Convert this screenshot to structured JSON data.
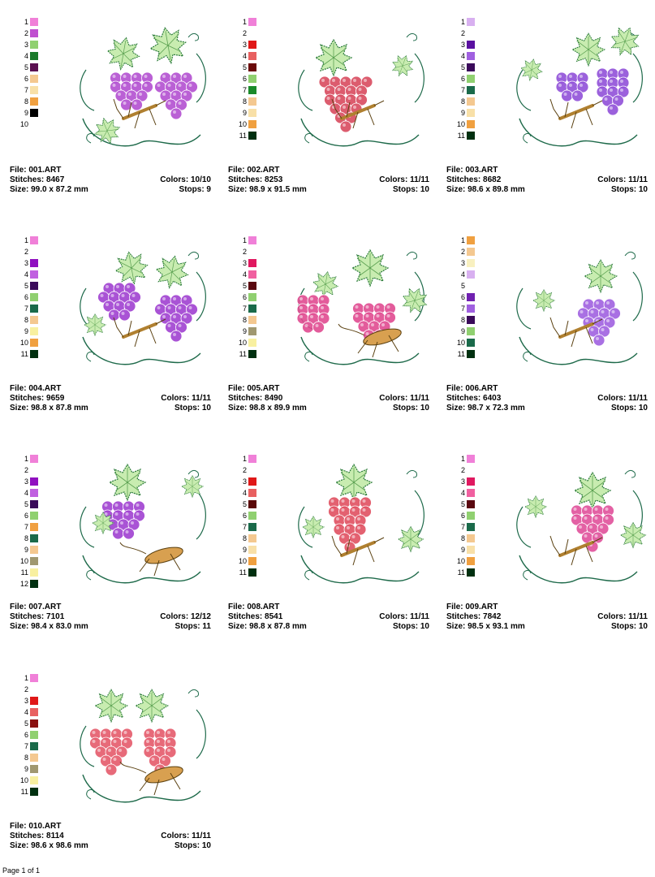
{
  "footer": "Page 1 of 1",
  "designs": [
    {
      "file": "File: 001.ART",
      "stitches": "Stitches: 8467",
      "colors": "Colors: 10/10",
      "size": "Size: 99.0 x 87.2 mm",
      "stops": "Stops: 9",
      "fruit": "#b24fd0",
      "motif": "grapes-mantis-icon",
      "swatches": [
        {
          "n": "1",
          "c": "#f080d8"
        },
        {
          "n": "2",
          "c": "#c050d0"
        },
        {
          "n": "3",
          "c": "#90d070"
        },
        {
          "n": "4",
          "c": "#1a7a2a"
        },
        {
          "n": "5",
          "c": "#5a1050"
        },
        {
          "n": "6",
          "c": "#f4c890"
        },
        {
          "n": "7",
          "c": "#f8e0a8"
        },
        {
          "n": "8",
          "c": "#f0a040"
        },
        {
          "n": "9",
          "c": "#000000"
        },
        {
          "n": "10",
          "c": null
        }
      ]
    },
    {
      "file": "File: 002.ART",
      "stitches": "Stitches: 8253",
      "colors": "Colors: 11/11",
      "size": "Size: 98.9 x 91.5 mm",
      "stops": "Stops: 10",
      "fruit": "#d84a5e",
      "motif": "grapes-mantis-icon",
      "swatches": [
        {
          "n": "1",
          "c": "#f080d8"
        },
        {
          "n": "2",
          "c": null
        },
        {
          "n": "3",
          "c": "#e01818"
        },
        {
          "n": "4",
          "c": "#e86060"
        },
        {
          "n": "5",
          "c": "#6a0808"
        },
        {
          "n": "6",
          "c": "#90d070"
        },
        {
          "n": "7",
          "c": "#1a8a2a"
        },
        {
          "n": "8",
          "c": "#f4c890"
        },
        {
          "n": "9",
          "c": "#f8e0a8"
        },
        {
          "n": "10",
          "c": "#f0a040"
        },
        {
          "n": "11",
          "c": "#003010"
        }
      ]
    },
    {
      "file": "File: 003.ART",
      "stitches": "Stitches: 8682",
      "colors": "Colors: 11/11",
      "size": "Size: 98.6 x 89.8 mm",
      "stops": "Stops: 10",
      "fruit": "#9050d8",
      "motif": "grapes-mantis-icon",
      "swatches": [
        {
          "n": "1",
          "c": "#d8b0f0"
        },
        {
          "n": "2",
          "c": null
        },
        {
          "n": "3",
          "c": "#5a10a0"
        },
        {
          "n": "4",
          "c": "#a060e0"
        },
        {
          "n": "5",
          "c": "#3a0a5a"
        },
        {
          "n": "6",
          "c": "#90d070"
        },
        {
          "n": "7",
          "c": "#1a6a4a"
        },
        {
          "n": "8",
          "c": "#f4c890"
        },
        {
          "n": "9",
          "c": "#f8e0a8"
        },
        {
          "n": "10",
          "c": "#f0a040"
        },
        {
          "n": "11",
          "c": "#003010"
        }
      ]
    },
    {
      "file": "File: 004.ART",
      "stitches": "Stitches: 9659",
      "colors": "Colors: 11/11",
      "size": "Size: 98.8 x 87.8 mm",
      "stops": "Stops: 10",
      "fruit": "#a040d0",
      "motif": "grapes-mantis-icon",
      "swatches": [
        {
          "n": "1",
          "c": "#f080d8"
        },
        {
          "n": "2",
          "c": null
        },
        {
          "n": "3",
          "c": "#9010c0"
        },
        {
          "n": "4",
          "c": "#c060e0"
        },
        {
          "n": "5",
          "c": "#3a0a5a"
        },
        {
          "n": "6",
          "c": "#90d070"
        },
        {
          "n": "7",
          "c": "#1a6a4a"
        },
        {
          "n": "8",
          "c": "#f4c890"
        },
        {
          "n": "9",
          "c": "#f8f0a0"
        },
        {
          "n": "10",
          "c": "#f0a040"
        },
        {
          "n": "11",
          "c": "#003010"
        }
      ]
    },
    {
      "file": "File: 005.ART",
      "stitches": "Stitches: 8490",
      "colors": "Colors: 11/11",
      "size": "Size: 98.8 x 89.9 mm",
      "stops": "Stops: 10",
      "fruit": "#e04a90",
      "motif": "grapes-cricket-icon",
      "swatches": [
        {
          "n": "1",
          "c": "#f080d8"
        },
        {
          "n": "2",
          "c": null
        },
        {
          "n": "3",
          "c": "#e01860"
        },
        {
          "n": "4",
          "c": "#f060a0"
        },
        {
          "n": "5",
          "c": "#5a0810"
        },
        {
          "n": "6",
          "c": "#90d070"
        },
        {
          "n": "7",
          "c": "#1a6a4a"
        },
        {
          "n": "8",
          "c": "#f4c890"
        },
        {
          "n": "9",
          "c": "#a09870"
        },
        {
          "n": "10",
          "c": "#f8f0a0"
        },
        {
          "n": "11",
          "c": "#003010"
        }
      ]
    },
    {
      "file": "File: 006.ART",
      "stitches": "Stitches: 6403",
      "colors": "Colors: 11/11",
      "size": "Size: 98.7 x 72.3 mm",
      "stops": "Stops: 10",
      "fruit": "#a060e0",
      "motif": "grapes-mantis-icon",
      "swatches": [
        {
          "n": "1",
          "c": "#f0a040"
        },
        {
          "n": "2",
          "c": "#f4c890"
        },
        {
          "n": "3",
          "c": "#f8f0c0"
        },
        {
          "n": "4",
          "c": "#d8b0f0"
        },
        {
          "n": "5",
          "c": null
        },
        {
          "n": "6",
          "c": "#7020b0"
        },
        {
          "n": "7",
          "c": "#a060e0"
        },
        {
          "n": "8",
          "c": "#3a0a5a"
        },
        {
          "n": "9",
          "c": "#90d070"
        },
        {
          "n": "10",
          "c": "#1a6a4a"
        },
        {
          "n": "11",
          "c": "#003010"
        }
      ]
    },
    {
      "file": "File: 007.ART",
      "stitches": "Stitches: 7101",
      "colors": "Colors: 12/12",
      "size": "Size: 98.4 x 83.0 mm",
      "stops": "Stops: 11",
      "fruit": "#a040d0",
      "motif": "grapes-cricket-icon",
      "swatches": [
        {
          "n": "1",
          "c": "#f080d8"
        },
        {
          "n": "2",
          "c": null
        },
        {
          "n": "3",
          "c": "#9010c0"
        },
        {
          "n": "4",
          "c": "#c060e0"
        },
        {
          "n": "5",
          "c": "#3a0a5a"
        },
        {
          "n": "6",
          "c": "#90d070"
        },
        {
          "n": "7",
          "c": "#f0a040"
        },
        {
          "n": "8",
          "c": "#1a6a4a"
        },
        {
          "n": "9",
          "c": "#f4c890"
        },
        {
          "n": "10",
          "c": "#a09870"
        },
        {
          "n": "11",
          "c": "#f8f0a0"
        },
        {
          "n": "12",
          "c": "#003010"
        }
      ]
    },
    {
      "file": "File: 008.ART",
      "stitches": "Stitches: 8541",
      "colors": "Colors: 11/11",
      "size": "Size: 98.8 x 87.8 mm",
      "stops": "Stops: 10",
      "fruit": "#e05060",
      "motif": "grapes-mantis-icon",
      "swatches": [
        {
          "n": "1",
          "c": "#f080d8"
        },
        {
          "n": "2",
          "c": null
        },
        {
          "n": "3",
          "c": "#e01818"
        },
        {
          "n": "4",
          "c": "#e86060"
        },
        {
          "n": "5",
          "c": "#5a0808"
        },
        {
          "n": "6",
          "c": "#90d070"
        },
        {
          "n": "7",
          "c": "#1a6a4a"
        },
        {
          "n": "8",
          "c": "#f4c890"
        },
        {
          "n": "9",
          "c": "#f8e0a8"
        },
        {
          "n": "10",
          "c": "#f0a040"
        },
        {
          "n": "11",
          "c": "#003010"
        }
      ]
    },
    {
      "file": "File: 009.ART",
      "stitches": "Stitches: 7842",
      "colors": "Colors: 11/11",
      "size": "Size: 98.5 x 93.1 mm",
      "stops": "Stops: 10",
      "fruit": "#e0509a",
      "motif": "grapes-mantis-icon",
      "swatches": [
        {
          "n": "1",
          "c": "#f080d8"
        },
        {
          "n": "2",
          "c": null
        },
        {
          "n": "3",
          "c": "#e01860"
        },
        {
          "n": "4",
          "c": "#f060a0"
        },
        {
          "n": "5",
          "c": "#5a0810"
        },
        {
          "n": "6",
          "c": "#90d070"
        },
        {
          "n": "7",
          "c": "#1a6a4a"
        },
        {
          "n": "8",
          "c": "#f4c890"
        },
        {
          "n": "9",
          "c": "#f8e0a8"
        },
        {
          "n": "10",
          "c": "#f0a040"
        },
        {
          "n": "11",
          "c": "#003010"
        }
      ]
    },
    {
      "file": "File: 010.ART",
      "stitches": "Stitches: 8114",
      "colors": "Colors: 11/11",
      "size": "Size: 98.6 x 98.6 mm",
      "stops": "Stops: 10",
      "fruit": "#e45a6a",
      "motif": "grapes-cricket-icon",
      "swatches": [
        {
          "n": "1",
          "c": "#f080d8"
        },
        {
          "n": "2",
          "c": null
        },
        {
          "n": "3",
          "c": "#e01818"
        },
        {
          "n": "4",
          "c": "#e86060"
        },
        {
          "n": "5",
          "c": "#8a1010"
        },
        {
          "n": "6",
          "c": "#90d070"
        },
        {
          "n": "7",
          "c": "#1a6a4a"
        },
        {
          "n": "8",
          "c": "#f4c890"
        },
        {
          "n": "9",
          "c": "#a09870"
        },
        {
          "n": "10",
          "c": "#f8f0a0"
        },
        {
          "n": "11",
          "c": "#003010"
        }
      ]
    }
  ]
}
